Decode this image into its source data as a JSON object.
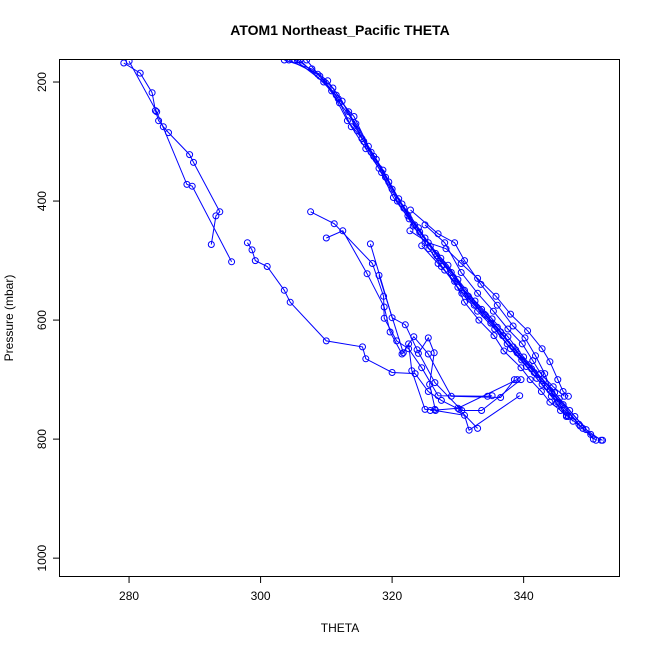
{
  "chart_data": {
    "type": "line",
    "title": "ATOM1 Northeast_Pacific THETA",
    "xlabel": "THETA",
    "ylabel": "Pressure (mbar)",
    "xlim": [
      269.5,
      354.5
    ],
    "ylim": [
      1030,
      163
    ],
    "y_inverted": true,
    "x_ticks": [
      280,
      300,
      320,
      340
    ],
    "y_ticks": [
      200,
      400,
      600,
      800,
      1000
    ],
    "x_tick_labels": [
      "280",
      "300",
      "320",
      "340"
    ],
    "y_tick_labels": [
      "200",
      "400",
      "600",
      "800",
      "1000"
    ],
    "grid": false,
    "legend": "none",
    "color": "#0000ff",
    "series": [
      {
        "points": [
          [
            279.2,
            168
          ],
          [
            281.7,
            185
          ],
          [
            283.5,
            218
          ],
          [
            284.0,
            248
          ],
          [
            284.5,
            265
          ],
          [
            285.2,
            275
          ],
          [
            286.0,
            285
          ],
          [
            289.2,
            322
          ],
          [
            289.8,
            335
          ],
          [
            293.8,
            418
          ],
          [
            293.2,
            425
          ],
          [
            292.5,
            473
          ]
        ]
      },
      {
        "points": [
          [
            280.0,
            165
          ],
          [
            284.2,
            250
          ],
          [
            288.8,
            372
          ],
          [
            289.6,
            375
          ],
          [
            295.6,
            502
          ]
        ]
      },
      {
        "points": [
          [
            298.0,
            470
          ],
          [
            298.7,
            482
          ],
          [
            299.2,
            500
          ],
          [
            301.0,
            510
          ],
          [
            303.6,
            550
          ],
          [
            304.5,
            570
          ],
          [
            310.0,
            635
          ],
          [
            315.5,
            645
          ],
          [
            316.0,
            665
          ],
          [
            320.0,
            688
          ],
          [
            323.5,
            690
          ],
          [
            325.5,
            720
          ],
          [
            327.5,
            735
          ],
          [
            330.2,
            750
          ],
          [
            333.0,
            782
          ]
        ]
      },
      {
        "points": [
          [
            307.6,
            418
          ],
          [
            311.2,
            438
          ],
          [
            317.0,
            505
          ],
          [
            318.7,
            560
          ],
          [
            318.8,
            597
          ],
          [
            320.7,
            635
          ],
          [
            322.5,
            648
          ],
          [
            324.5,
            680
          ],
          [
            327.0,
            727
          ],
          [
            334.5,
            728
          ],
          [
            335.2,
            727
          ]
        ]
      },
      {
        "points": [
          [
            310.0,
            462
          ],
          [
            312.5,
            450
          ],
          [
            316.2,
            522
          ],
          [
            318.8,
            578
          ],
          [
            319.7,
            620
          ],
          [
            321.5,
            657
          ],
          [
            323.3,
            628
          ],
          [
            325.5,
            657
          ],
          [
            329.0,
            728
          ],
          [
            336.5,
            730
          ],
          [
            338.6,
            700
          ]
        ]
      },
      {
        "points": [
          [
            316.7,
            472
          ],
          [
            320.0,
            596
          ],
          [
            322.0,
            608
          ],
          [
            323.8,
            650
          ],
          [
            326.5,
            705
          ],
          [
            330.6,
            752
          ],
          [
            333.6,
            752
          ],
          [
            339.6,
            700
          ]
        ]
      },
      {
        "points": [
          [
            324.0,
            656
          ],
          [
            325.5,
            630
          ],
          [
            326.4,
            655
          ],
          [
            325.7,
            708
          ],
          [
            326.6,
            752
          ],
          [
            331.0,
            760
          ],
          [
            331.7,
            785
          ],
          [
            339.4,
            727
          ]
        ]
      },
      {
        "points": [
          [
            318.0,
            525
          ],
          [
            321.7,
            655
          ],
          [
            322.5,
            640
          ],
          [
            323.0,
            685
          ],
          [
            325.0,
            750
          ],
          [
            326.5,
            750
          ],
          [
            325.8,
            752
          ],
          [
            330.0,
            748
          ],
          [
            339.0,
            700
          ]
        ]
      },
      {
        "points": [
          [
            304.3,
            163
          ],
          [
            308.7,
            187
          ],
          [
            311.0,
            210
          ],
          [
            313.4,
            250
          ],
          [
            315.7,
            300
          ],
          [
            318.0,
            345
          ],
          [
            320.2,
            394
          ],
          [
            322.6,
            430
          ],
          [
            325.0,
            470
          ],
          [
            327.5,
            510
          ],
          [
            330.0,
            545
          ],
          [
            332.5,
            575
          ],
          [
            335.0,
            605
          ],
          [
            337.5,
            640
          ],
          [
            339.7,
            667
          ],
          [
            342.0,
            698
          ],
          [
            344.2,
            728
          ],
          [
            346.5,
            760
          ],
          [
            349.0,
            782
          ],
          [
            351.0,
            802
          ]
        ]
      },
      {
        "points": [
          [
            305.2,
            163
          ],
          [
            309.6,
            200
          ],
          [
            312.0,
            235
          ],
          [
            314.5,
            270
          ],
          [
            316.8,
            318
          ],
          [
            319.0,
            360
          ],
          [
            321.5,
            405
          ],
          [
            324.0,
            445
          ],
          [
            326.6,
            488
          ],
          [
            329.0,
            520
          ],
          [
            331.6,
            560
          ],
          [
            334.0,
            590
          ],
          [
            336.5,
            620
          ],
          [
            338.8,
            650
          ],
          [
            341.2,
            682
          ],
          [
            343.5,
            712
          ],
          [
            346.0,
            742
          ],
          [
            348.4,
            775
          ],
          [
            350.6,
            800
          ]
        ]
      },
      {
        "points": [
          [
            306.0,
            163
          ],
          [
            310.8,
            215
          ],
          [
            313.2,
            265
          ],
          [
            315.4,
            295
          ],
          [
            317.6,
            330
          ],
          [
            320.0,
            380
          ],
          [
            322.4,
            425
          ],
          [
            325.0,
            462
          ],
          [
            327.4,
            496
          ],
          [
            330.0,
            532
          ],
          [
            332.6,
            568
          ],
          [
            335.2,
            598
          ],
          [
            337.6,
            628
          ],
          [
            340.0,
            662
          ],
          [
            342.3,
            692
          ],
          [
            344.7,
            722
          ],
          [
            347.0,
            752
          ],
          [
            349.5,
            784
          ],
          [
            351.8,
            802
          ]
        ]
      },
      {
        "points": [
          [
            303.6,
            163
          ],
          [
            307.8,
            178
          ],
          [
            310.2,
            198
          ],
          [
            312.4,
            232
          ],
          [
            314.7,
            282
          ],
          [
            317.2,
            325
          ],
          [
            319.5,
            368
          ],
          [
            321.8,
            412
          ],
          [
            324.2,
            452
          ],
          [
            326.8,
            492
          ],
          [
            329.3,
            528
          ],
          [
            331.8,
            565
          ],
          [
            334.2,
            592
          ],
          [
            336.8,
            626
          ],
          [
            339.0,
            655
          ],
          [
            341.6,
            688
          ],
          [
            344.0,
            718
          ],
          [
            346.2,
            748
          ],
          [
            348.6,
            778
          ]
        ]
      },
      {
        "points": [
          [
            307.0,
            163
          ],
          [
            311.8,
            228
          ],
          [
            314.2,
            258
          ],
          [
            316.4,
            308
          ],
          [
            318.6,
            348
          ],
          [
            321.0,
            396
          ],
          [
            323.4,
            440
          ],
          [
            325.8,
            476
          ],
          [
            328.5,
            508
          ],
          [
            331.0,
            550
          ],
          [
            333.6,
            582
          ],
          [
            336.0,
            612
          ],
          [
            338.4,
            645
          ],
          [
            340.8,
            675
          ],
          [
            343.0,
            702
          ],
          [
            345.4,
            732
          ],
          [
            347.8,
            762
          ],
          [
            350.2,
            792
          ],
          [
            352.0,
            802
          ]
        ]
      },
      {
        "points": [
          [
            305.6,
            163
          ],
          [
            309.0,
            190
          ],
          [
            311.5,
            222
          ],
          [
            313.8,
            275
          ],
          [
            316.0,
            312
          ],
          [
            318.4,
            352
          ],
          [
            320.8,
            400
          ],
          [
            323.2,
            442
          ],
          [
            325.6,
            480
          ],
          [
            328.0,
            516
          ],
          [
            330.6,
            555
          ],
          [
            333.0,
            585
          ],
          [
            335.6,
            615
          ],
          [
            338.0,
            648
          ],
          [
            340.4,
            678
          ],
          [
            342.8,
            708
          ],
          [
            345.2,
            738
          ],
          [
            347.5,
            770
          ]
        ]
      },
      {
        "points": [
          [
            322.8,
            415
          ],
          [
            327.0,
            455
          ],
          [
            329.5,
            470
          ],
          [
            331.0,
            500
          ],
          [
            333.5,
            540
          ],
          [
            336.0,
            575
          ],
          [
            338.4,
            610
          ],
          [
            340.2,
            630
          ],
          [
            341.8,
            660
          ],
          [
            343.2,
            690
          ],
          [
            344.3,
            722
          ],
          [
            345.0,
            740
          ],
          [
            345.6,
            752
          ],
          [
            346.5,
            762
          ]
        ]
      },
      {
        "points": [
          [
            322.7,
            450
          ],
          [
            325.5,
            470
          ],
          [
            328.2,
            480
          ],
          [
            330.5,
            505
          ],
          [
            333.0,
            530
          ],
          [
            335.8,
            560
          ],
          [
            338.0,
            590
          ],
          [
            340.6,
            618
          ],
          [
            342.8,
            648
          ],
          [
            344.0,
            670
          ],
          [
            345.2,
            700
          ],
          [
            346.0,
            720
          ],
          [
            346.8,
            728
          ]
        ]
      },
      {
        "points": [
          [
            324.5,
            475
          ],
          [
            327.0,
            505
          ],
          [
            329.5,
            535
          ],
          [
            331.0,
            570
          ],
          [
            333.2,
            600
          ],
          [
            335.5,
            626
          ],
          [
            337.0,
            652
          ],
          [
            339.6,
            680
          ],
          [
            341.0,
            700
          ],
          [
            342.7,
            720
          ],
          [
            344.0,
            738
          ],
          [
            346.8,
            762
          ]
        ]
      },
      {
        "points": [
          [
            325.0,
            440
          ],
          [
            328.0,
            470
          ],
          [
            330.5,
            520
          ],
          [
            333.0,
            555
          ],
          [
            335.4,
            585
          ],
          [
            337.6,
            615
          ],
          [
            339.8,
            640
          ],
          [
            341.4,
            668
          ],
          [
            342.6,
            690
          ],
          [
            344.5,
            712
          ],
          [
            346.2,
            728
          ]
        ]
      }
    ]
  }
}
